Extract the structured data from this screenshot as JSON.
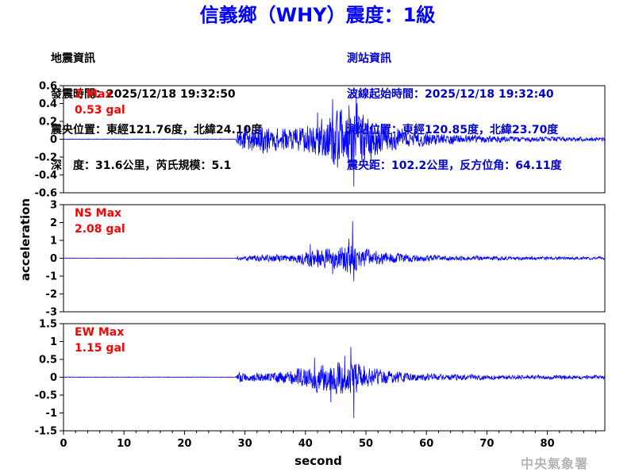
{
  "header": {
    "title": "信義鄉（WHY）震度：1級",
    "quake_info": [
      "地震資訊",
      "發震時間：2025/12/18 19:32:50",
      "震央位置：東經121.76度，北緯24.10度",
      "深　度：31.6公里，芮氏規模：5.1"
    ],
    "station_info": [
      "測站資訊",
      "波線起始時間：2025/12/18 19:32:40",
      "測站位置：東經120.85度，北緯23.70度",
      "震央距：102.2公里，反方位角：64.11度"
    ]
  },
  "watermark": "中央氣象署",
  "colors": {
    "title": "#0000ff",
    "trace": "#0000ff",
    "label": "#ff0000",
    "station_info": "#0000cc"
  },
  "chart_data": [
    {
      "type": "line",
      "component": "Z",
      "label_line1": "Z Max",
      "label_line2": "0.53 gal",
      "max_abs": 0.53,
      "ylim": [
        -0.6,
        0.6
      ],
      "yticks": [
        -0.6,
        -0.4,
        -0.2,
        0,
        0.2,
        0.4,
        0.6
      ],
      "ytick_labels": [
        "-0.6",
        "-0.4",
        "-0.2",
        "0",
        "0.2",
        "0.4",
        "0.6"
      ],
      "noise": 0.004,
      "envelope": [
        [
          0,
          0.004
        ],
        [
          28.5,
          0.004
        ],
        [
          29,
          0.12
        ],
        [
          32,
          0.16
        ],
        [
          36,
          0.13
        ],
        [
          40,
          0.15
        ],
        [
          43,
          0.22
        ],
        [
          45,
          0.35
        ],
        [
          46.5,
          0.25
        ],
        [
          48,
          0.4
        ],
        [
          50,
          0.26
        ],
        [
          53,
          0.15
        ],
        [
          58,
          0.09
        ],
        [
          65,
          0.05
        ],
        [
          75,
          0.03
        ],
        [
          90,
          0.02
        ]
      ],
      "peaks": [
        [
          44.5,
          0.45
        ],
        [
          45.3,
          -0.32
        ],
        [
          48.0,
          -0.53
        ],
        [
          48.4,
          0.5
        ],
        [
          47.2,
          0.38
        ],
        [
          42.0,
          0.3
        ]
      ],
      "seed": 11
    },
    {
      "type": "line",
      "component": "NS",
      "label_line1": "NS Max",
      "label_line2": "2.08 gal",
      "max_abs": 2.08,
      "ylim": [
        -3,
        3
      ],
      "yticks": [
        -3,
        -2,
        -1,
        0,
        1,
        2,
        3
      ],
      "ytick_labels": [
        "-3",
        "-2",
        "-1",
        "0",
        "1",
        "2",
        "3"
      ],
      "noise": 0.01,
      "envelope": [
        [
          0,
          0.01
        ],
        [
          28.5,
          0.01
        ],
        [
          29,
          0.12
        ],
        [
          33,
          0.18
        ],
        [
          38,
          0.22
        ],
        [
          40,
          0.4
        ],
        [
          42,
          0.6
        ],
        [
          44,
          0.5
        ],
        [
          46,
          0.75
        ],
        [
          48,
          0.85
        ],
        [
          50,
          0.5
        ],
        [
          53,
          0.32
        ],
        [
          58,
          0.2
        ],
        [
          65,
          0.14
        ],
        [
          75,
          0.1
        ],
        [
          90,
          0.08
        ]
      ],
      "peaks": [
        [
          47.8,
          2.08
        ],
        [
          48.0,
          -1.3
        ],
        [
          47.2,
          1.1
        ],
        [
          44.5,
          -0.9
        ],
        [
          40.8,
          0.8
        ]
      ],
      "seed": 23
    },
    {
      "type": "line",
      "component": "EW",
      "label_line1": "EW Max",
      "label_line2": "1.15 gal",
      "max_abs": 1.15,
      "ylim": [
        -1.5,
        1.5
      ],
      "yticks": [
        -1.5,
        -1,
        -0.5,
        0,
        0.5,
        1,
        1.5
      ],
      "ytick_labels": [
        "-1.5",
        "-1",
        "-0.5",
        "0",
        "0.5",
        "1",
        "1.5"
      ],
      "noise": 0.01,
      "envelope": [
        [
          0,
          0.01
        ],
        [
          28.5,
          0.01
        ],
        [
          29,
          0.15
        ],
        [
          33,
          0.12
        ],
        [
          38,
          0.2
        ],
        [
          40,
          0.3
        ],
        [
          42,
          0.4
        ],
        [
          45,
          0.45
        ],
        [
          47,
          0.5
        ],
        [
          48.5,
          0.45
        ],
        [
          50,
          0.3
        ],
        [
          53,
          0.2
        ],
        [
          58,
          0.12
        ],
        [
          65,
          0.08
        ],
        [
          75,
          0.06
        ],
        [
          90,
          0.05
        ]
      ],
      "peaks": [
        [
          48.0,
          -1.15
        ],
        [
          47.5,
          0.85
        ],
        [
          46.5,
          0.6
        ],
        [
          44.2,
          -0.7
        ],
        [
          41.5,
          0.55
        ]
      ],
      "seed": 37
    }
  ],
  "axes": {
    "xlabel": "second",
    "ylabel": "acceleration",
    "xlim": [
      0,
      89.5
    ],
    "xticks": [
      0,
      10,
      20,
      30,
      40,
      50,
      60,
      70,
      80
    ],
    "xtick_labels": [
      "0",
      "10",
      "20",
      "30",
      "40",
      "50",
      "60",
      "70",
      "80"
    ]
  }
}
